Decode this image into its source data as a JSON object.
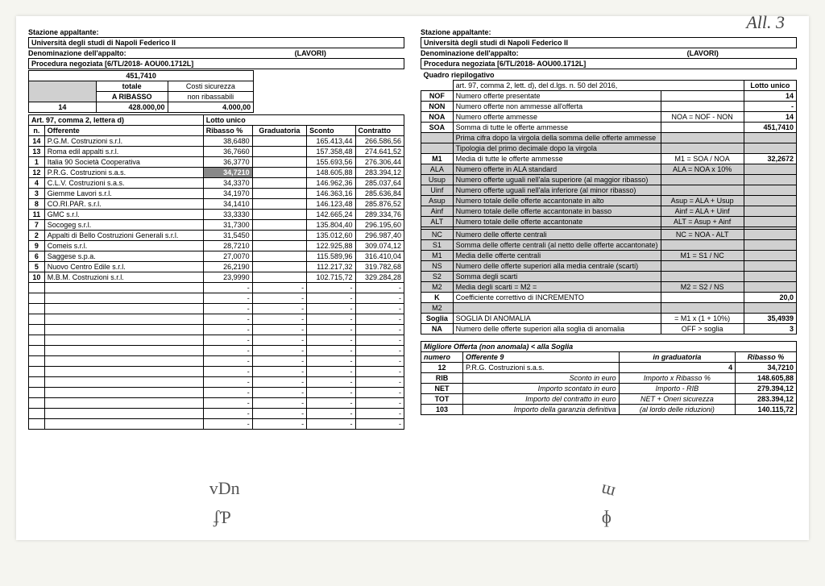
{
  "handwritten_top": "All. 3",
  "left": {
    "stazione": "Stazione appaltante:",
    "uni": "Università degli studi di Napoli Federico II",
    "denom_lbl": "Denominazione dell'appalto:",
    "denom_val": "(LAVORI)",
    "proc": "Procedura negoziata [6/TL/2018- AOU00.1712L]",
    "val_top": "451,7410",
    "totale": "totale",
    "a_ribasso": "A RIBASSO",
    "costi": "Costi sicurezza",
    "nonrib": "non ribassabili",
    "n14": "14",
    "v428": "428.000,00",
    "v4000": "4.000,00",
    "art97": "Art. 97, comma 2, lettera d)",
    "lotto": "Lotto unico",
    "cols": [
      "n.",
      "Offerente",
      "Ribasso %",
      "Graduatoria",
      "Sconto",
      "Contratto"
    ],
    "rows": [
      [
        "14",
        "P.G.M. Costruzioni s.r.l.",
        "38,6480",
        "",
        "165.413,44",
        "266.586,56"
      ],
      [
        "13",
        "Roma edil appalti s.r.l.",
        "36,7660",
        "",
        "157.358,48",
        "274.641,52"
      ],
      [
        "1",
        "Italia 90 Società Cooperativa",
        "36,3770",
        "",
        "155.693,56",
        "276.306,44"
      ],
      [
        "12",
        "P.R.G. Costruzioni s.a.s.",
        "34,7210",
        "",
        "148.605,88",
        "283.394,12"
      ],
      [
        "4",
        "C.L.V. Costruzioni s.a.s.",
        "34,3370",
        "",
        "146.962,36",
        "285.037,64"
      ],
      [
        "3",
        "Giemme Lavori s.r.l.",
        "34,1970",
        "",
        "146.363,16",
        "285.636,84"
      ],
      [
        "8",
        "CO.RI.PAR. s.r.l.",
        "34,1410",
        "",
        "146.123,48",
        "285.876,52"
      ],
      [
        "11",
        "GMC s.r.l.",
        "33,3330",
        "",
        "142.665,24",
        "289.334,76"
      ],
      [
        "7",
        "Socogeg s.r.l.",
        "31,7300",
        "",
        "135.804,40",
        "296.195,60"
      ],
      [
        "2",
        "Appalti di Bello Costruzioni Generali s.r.l.",
        "31,5450",
        "",
        "135.012,60",
        "296.987,40"
      ],
      [
        "9",
        "Comeis s.r.l.",
        "28,7210",
        "",
        "122.925,88",
        "309.074,12"
      ],
      [
        "6",
        "Saggese s.p.a.",
        "27,0070",
        "",
        "115.589,96",
        "316.410,04"
      ],
      [
        "5",
        "Nuovo Centro Edile s.r.l.",
        "26,2190",
        "",
        "112.217,32",
        "319.782,68"
      ],
      [
        "10",
        "M.B.M. Costruzioni s.r.l.",
        "23,9990",
        "",
        "102.715,72",
        "329.284,28"
      ]
    ],
    "highlight_row_index": 3
  },
  "right": {
    "stazione": "Stazione appaltante:",
    "uni": "Università degli studi di Napoli Federico II",
    "denom_lbl": "Denominazione dell'appalto:",
    "denom_val": "(LAVORI)",
    "proc": "Procedura negoziata [6/TL/2018- AOU00.1712L]",
    "quadro": "Quadro riepilogativo",
    "art97": "art. 97, comma 2, lett. d), del d.lgs. n. 50 del 2016,",
    "lotto": "Lotto unico",
    "rows1": [
      [
        "NOF",
        "Numero offerte presentate",
        "",
        "14"
      ],
      [
        "NON",
        "Numero offerte non ammesse all'offerta",
        "",
        "-"
      ],
      [
        "NOA",
        "Numero offerte ammesse",
        "NOA = NOF - NON",
        "14"
      ],
      [
        "SOA",
        "Somma di tutte le offerte ammesse",
        "",
        "451,7410"
      ]
    ],
    "shaded1": [
      [
        "",
        "Prima cifra dopo la virgola della somma delle offerte ammesse",
        "",
        ""
      ],
      [
        "",
        "Tipologia del primo decimale dopo la virgola",
        "",
        ""
      ]
    ],
    "m1row": [
      "M1",
      "Media di tutte le offerte ammesse",
      "M1 = SOA / NOA",
      "32,2672"
    ],
    "shaded2": [
      [
        "ALA",
        "Numero offerte in ALA standard",
        "ALA = NOA x 10%",
        ""
      ],
      [
        "Usup",
        "Numero offerte uguali nell'ala superiore (al maggior ribasso)",
        "",
        ""
      ],
      [
        "Uinf",
        "Numero offerte uguali nell'ala inferiore (al minor ribasso)",
        "",
        ""
      ],
      [
        "Asup",
        "Numero totale delle offerte accantonate in alto",
        "Asup = ALA + Usup",
        ""
      ],
      [
        "Ainf",
        "Numero totale delle offerte accantonate in basso",
        "Ainf = ALA + Uinf",
        ""
      ],
      [
        "ALT",
        "Numero totale delle offerte accantonate",
        "ALT = Asup + Ainf",
        ""
      ],
      [
        "",
        "",
        "",
        ""
      ],
      [
        "NC",
        "Numero delle offerte centrali",
        "NC = NOA - ALT",
        ""
      ],
      [
        "S1",
        "Somma delle offerte centrali (al netto delle offerte accantonate)",
        "",
        ""
      ],
      [
        "M1",
        "Media delle offerte centrali",
        "M1 = S1 / NC",
        ""
      ],
      [
        "NS",
        "Numero delle offerte superiori alla media centrale (scarti)",
        "",
        ""
      ],
      [
        "S2",
        "Somma degli scarti",
        "",
        ""
      ],
      [
        "M2",
        "Media degli scarti = M2 =",
        "M2 = S2 / NS",
        ""
      ]
    ],
    "krow": [
      "K",
      "Coefficiente correttivo di INCREMENTO",
      "",
      "20,0"
    ],
    "m2shade": [
      "M2",
      "",
      "",
      ""
    ],
    "soglia": [
      "Soglia",
      "SOGLIA DI ANOMALIA",
      "= M1 x (1 + 10%)",
      "35,4939"
    ],
    "na": [
      "NA",
      "Numero delle offerte superiori alla soglia di anomalia",
      "OFF > soglia",
      "3"
    ],
    "migliore_hdr": "Migliore Offerta (non anomala) < alla Soglia",
    "off_cols": [
      "numero",
      "Offerente 9",
      "in graduatoria",
      "Ribasso %"
    ],
    "off_row": [
      "12",
      "P.R.G. Costruzioni s.a.s.",
      "4",
      "34,7210"
    ],
    "bottom": [
      [
        "RIB",
        "Sconto in euro",
        "Importo x Ribasso %",
        "148.605,88"
      ],
      [
        "NET",
        "Importo scontato in euro",
        "Importo - RIB",
        "279.394,12"
      ],
      [
        "TOT",
        "Importo del contratto in euro",
        "NET + Oneri sicurezza",
        "283.394,12"
      ],
      [
        "103",
        "Importo della garanzia definitiva",
        "(al lordo delle riduzioni)",
        "140.115,72"
      ]
    ]
  },
  "sig": [
    "vDn",
    "ɸ",
    "ʄƤ",
    "ɯ"
  ]
}
